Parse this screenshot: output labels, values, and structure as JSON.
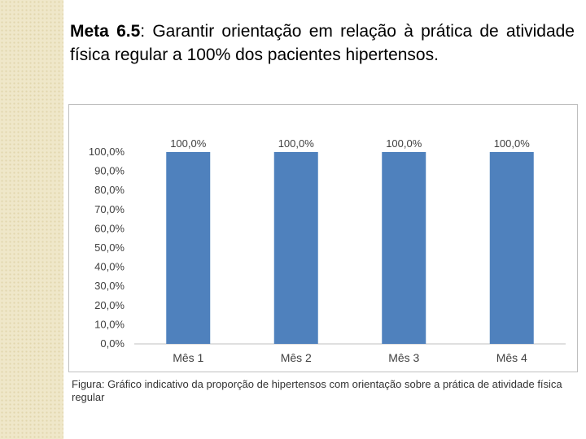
{
  "heading": {
    "label": "Meta 6.5",
    "text": ": Garantir orientação em relação à prática de atividade física regular a 100% dos pacientes hipertensos."
  },
  "caption": {
    "text": "Figura: Gráfico indicativo da proporção de hipertensos com orientação sobre a prática de atividade física regular"
  },
  "colors": {
    "bar": "#4f81bd",
    "side_strip": "#efe7c9"
  },
  "chart_data": {
    "type": "bar",
    "categories": [
      "Mês 1",
      "Mês 2",
      "Mês 3",
      "Mês 4"
    ],
    "values": [
      100,
      100,
      100,
      100
    ],
    "data_labels": [
      "100,0%",
      "100,0%",
      "100,0%",
      "100,0%"
    ],
    "yticks": [
      "0,0%",
      "10,0%",
      "20,0%",
      "30,0%",
      "40,0%",
      "50,0%",
      "60,0%",
      "70,0%",
      "80,0%",
      "90,0%",
      "100,0%"
    ],
    "ylim": [
      0,
      100
    ],
    "grid": false,
    "legend": "none"
  }
}
